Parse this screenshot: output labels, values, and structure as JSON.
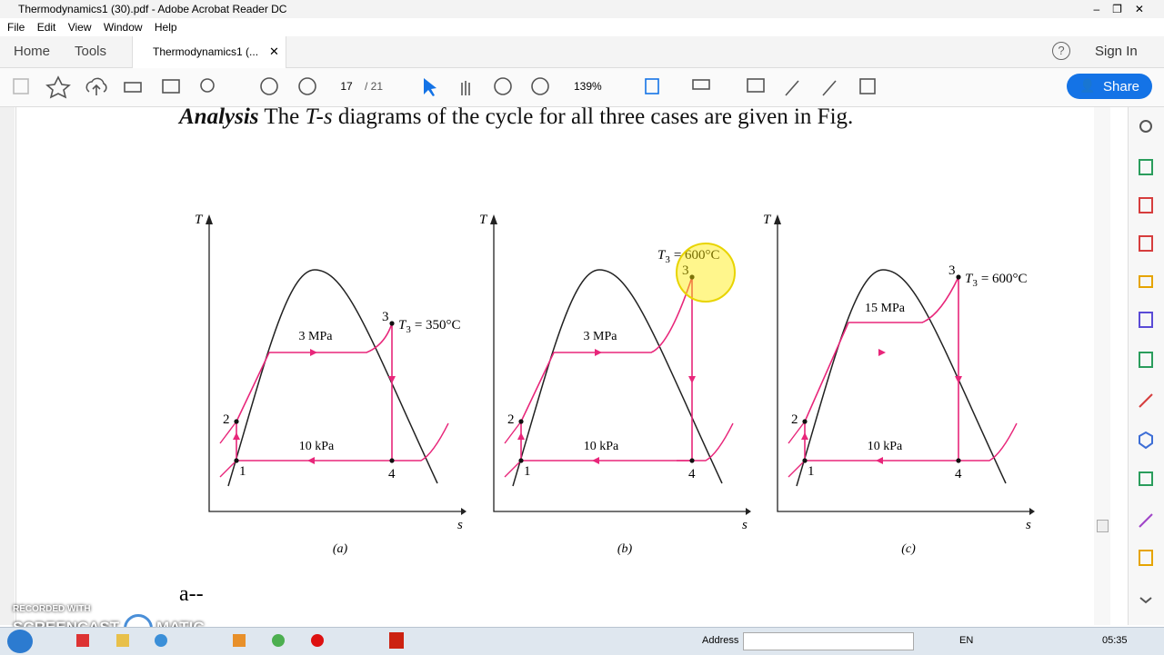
{
  "window": {
    "title": "Thermodynamics1 (30).pdf - Adobe Acrobat Reader DC"
  },
  "menu": [
    "File",
    "Edit",
    "View",
    "Window",
    "Help"
  ],
  "tabs": [
    "Home",
    "Tools",
    "Thermodynamics1 (..."
  ],
  "header_actions": {
    "sign_in": "Sign In",
    "share": "Share"
  },
  "toolbar": {
    "page": "17",
    "page_count": "/ 21",
    "zoom": "139%"
  },
  "document": {
    "paragraph": {
      "lead": "Analysis",
      "part1": "The",
      "symbol": "T-s",
      "part2": "diagrams of the cycle for all three cases are given in Fig."
    },
    "figures": [
      {
        "t_axis": "T",
        "s_axis": "s",
        "high_pressure": "3 MPa",
        "low_pressure": "10 kPa",
        "t3_symbol": "T",
        "t3_sub": "3",
        "t3_value": "= 350°C",
        "points": [
          "1",
          "2",
          "3",
          "4"
        ],
        "caption": "(a)"
      },
      {
        "t_axis": "T",
        "s_axis": "s",
        "high_pressure": "3 MPa",
        "low_pressure": "10 kPa",
        "t3_symbol": "T",
        "t3_sub": "3",
        "t3_value": "= 600°C",
        "points": [
          "1",
          "2",
          "3",
          "4"
        ],
        "caption": "(b)"
      },
      {
        "t_axis": "T",
        "s_axis": "s",
        "high_pressure": "15 MPa",
        "low_pressure": "10 kPa",
        "t3_symbol": "T",
        "t3_sub": "3",
        "t3_value": "= 600°C",
        "points": [
          "1",
          "2",
          "3",
          "4"
        ],
        "caption": "(c)"
      }
    ],
    "next_text": "a--"
  },
  "watermark": {
    "line1": "RECORDED WITH",
    "line2a": "SCREENCAST",
    "line2b": "MATIC"
  },
  "taskbar": {
    "address": "Address",
    "language": "EN",
    "clock": "05:35"
  }
}
